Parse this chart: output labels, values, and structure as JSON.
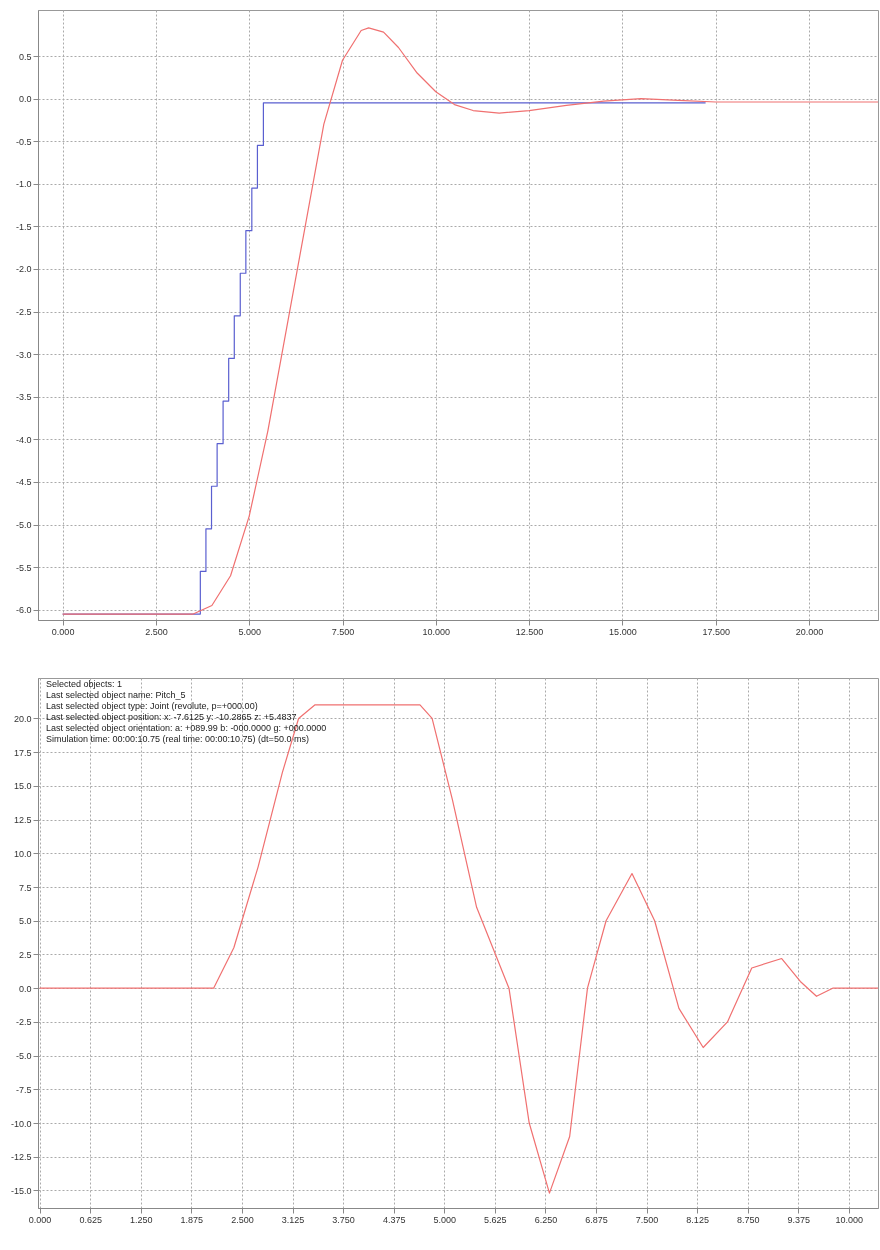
{
  "chart_data": [
    {
      "type": "line",
      "xlim": [
        -0.66,
        21.85
      ],
      "ylim": [
        -6.12,
        1.04
      ],
      "xticks": [
        {
          "value": 0,
          "label": "0.000"
        },
        {
          "value": 2.5,
          "label": "2.500"
        },
        {
          "value": 5,
          "label": "5.000"
        },
        {
          "value": 7.5,
          "label": "7.500"
        },
        {
          "value": 10,
          "label": "10.000"
        },
        {
          "value": 12.5,
          "label": "12.500"
        },
        {
          "value": 15,
          "label": "15.000"
        },
        {
          "value": 17.5,
          "label": "17.500"
        },
        {
          "value": 20,
          "label": "20.000"
        }
      ],
      "yticks": [
        {
          "value": -6,
          "label": "-6.0"
        },
        {
          "value": -5.5,
          "label": "-5.5"
        },
        {
          "value": -5,
          "label": "-5.0"
        },
        {
          "value": -4.5,
          "label": "-4.5"
        },
        {
          "value": -4,
          "label": "-4.0"
        },
        {
          "value": -3.5,
          "label": "-3.5"
        },
        {
          "value": -3,
          "label": "-3.0"
        },
        {
          "value": -2.5,
          "label": "-2.5"
        },
        {
          "value": -2,
          "label": "-2.0"
        },
        {
          "value": -1.5,
          "label": "-1.5"
        },
        {
          "value": -1,
          "label": "-1.0"
        },
        {
          "value": -0.5,
          "label": "-0.5"
        },
        {
          "value": 0,
          "label": "0.0"
        },
        {
          "value": 0.5,
          "label": "0.5"
        }
      ],
      "grid": true,
      "series": [
        {
          "type": "step",
          "color": "#5a5fd0",
          "x": [
            0,
            3.69,
            3.84,
            3.99,
            4.14,
            4.3,
            4.45,
            4.6,
            4.76,
            4.91,
            5.07,
            5.22,
            5.38,
            5.54,
            17.23
          ],
          "values": [
            -6.05,
            -5.55,
            -5.05,
            -4.55,
            -4.05,
            -3.55,
            -3.05,
            -2.55,
            -2.05,
            -1.55,
            -1.05,
            -0.55,
            -0.05,
            -0.05,
            -0.05
          ]
        },
        {
          "color": "#f07070",
          "x": [
            0,
            3.5,
            4.0,
            4.5,
            5.0,
            5.5,
            6.0,
            6.5,
            7.0,
            7.5,
            8.0,
            8.2,
            8.6,
            9.0,
            9.5,
            10.0,
            10.5,
            11.0,
            11.7,
            12.5,
            13.5,
            14.5,
            15.5,
            16.5,
            17.5,
            21.85
          ],
          "values": [
            -6.05,
            -6.05,
            -5.95,
            -5.6,
            -4.9,
            -3.9,
            -2.7,
            -1.5,
            -0.3,
            0.45,
            0.8,
            0.83,
            0.78,
            0.6,
            0.3,
            0.08,
            -0.07,
            -0.14,
            -0.17,
            -0.14,
            -0.08,
            -0.03,
            0.0,
            -0.02,
            -0.04,
            -0.04
          ]
        }
      ]
    },
    {
      "type": "line",
      "xlim": [
        -0.02,
        10.36
      ],
      "ylim": [
        -16.3,
        23
      ],
      "xticks": [
        {
          "value": 0,
          "label": "0.000"
        },
        {
          "value": 0.625,
          "label": "0.625"
        },
        {
          "value": 1.25,
          "label": "1.250"
        },
        {
          "value": 1.875,
          "label": "1.875"
        },
        {
          "value": 2.5,
          "label": "2.500"
        },
        {
          "value": 3.125,
          "label": "3.125"
        },
        {
          "value": 3.75,
          "label": "3.750"
        },
        {
          "value": 4.375,
          "label": "4.375"
        },
        {
          "value": 5,
          "label": "5.000"
        },
        {
          "value": 5.625,
          "label": "5.625"
        },
        {
          "value": 6.25,
          "label": "6.250"
        },
        {
          "value": 6.875,
          "label": "6.875"
        },
        {
          "value": 7.5,
          "label": "7.500"
        },
        {
          "value": 8.125,
          "label": "8.125"
        },
        {
          "value": 8.75,
          "label": "8.750"
        },
        {
          "value": 9.375,
          "label": "9.375"
        },
        {
          "value": 10,
          "label": "10.000"
        }
      ],
      "yticks": [
        {
          "value": -15,
          "label": "-15.0"
        },
        {
          "value": -12.5,
          "label": "-12.5"
        },
        {
          "value": -10,
          "label": "-10.0"
        },
        {
          "value": -7.5,
          "label": "-7.5"
        },
        {
          "value": -5,
          "label": "-5.0"
        },
        {
          "value": -2.5,
          "label": "-2.5"
        },
        {
          "value": 0,
          "label": "0.0"
        },
        {
          "value": 2.5,
          "label": "2.5"
        },
        {
          "value": 5,
          "label": "5.0"
        },
        {
          "value": 7.5,
          "label": "7.5"
        },
        {
          "value": 10,
          "label": "10.0"
        },
        {
          "value": 12.5,
          "label": "12.5"
        },
        {
          "value": 15,
          "label": "15.0"
        },
        {
          "value": 17.5,
          "label": "17.5"
        },
        {
          "value": 20,
          "label": "20.0"
        }
      ],
      "grid": true,
      "annotations": [
        "Selected objects: 1",
        "Last selected object name: Pitch_5",
        "Last selected object type: Joint (revolute, p=+000.00)",
        "Last selected object position: x: -7.6125  y: -10.2865  z: +5.4837",
        "Last selected object orientation: a: +089.99  b: -000.0000  g: +000.0000",
        "Simulation time: 00:00:10.75 (real time: 00:00:10.75) (dt=50.0 ms)"
      ],
      "series": [
        {
          "color": "#f07070",
          "x": [
            0,
            2.15,
            2.4,
            2.7,
            3.0,
            3.2,
            3.4,
            4.7,
            4.85,
            5.1,
            5.4,
            5.8,
            6.05,
            6.3,
            6.55,
            6.77,
            7.0,
            7.32,
            7.6,
            7.9,
            8.2,
            8.5,
            8.8,
            9.17,
            9.4,
            9.6,
            9.8,
            10.36
          ],
          "values": [
            0,
            0,
            3,
            9,
            16,
            20,
            21,
            21,
            20,
            14,
            6,
            0,
            -10,
            -15.2,
            -11,
            0,
            5,
            8.5,
            5,
            -1.5,
            -4.4,
            -2.5,
            1.5,
            2.2,
            0.5,
            -0.6,
            0,
            0
          ]
        }
      ]
    }
  ]
}
